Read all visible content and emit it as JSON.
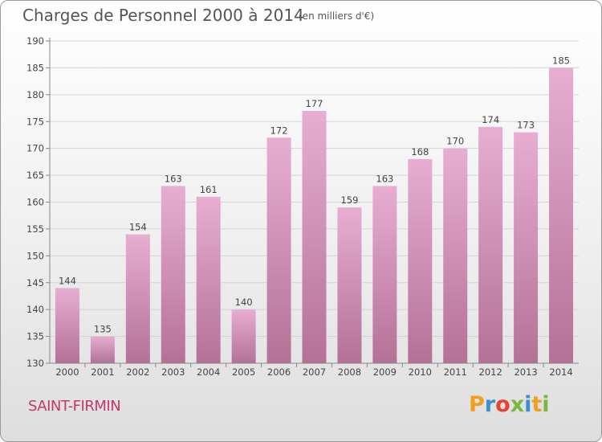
{
  "header": {
    "title": "Charges de Personnel 2000 à 2014",
    "subtitle": "(en milliers d'€)"
  },
  "footer": {
    "commune": "SAINT-FIRMIN",
    "logo": {
      "text": "Proxiti",
      "letters": [
        {
          "ch": "P",
          "color": "#f0a020"
        },
        {
          "ch": "r",
          "color": "#3a8fd0"
        },
        {
          "ch": "o",
          "color": "#e8432e"
        },
        {
          "ch": "x",
          "color": "#7ab83c"
        },
        {
          "ch": "i",
          "color": "#3a8fd0"
        },
        {
          "ch": "t",
          "color": "#f0a020"
        },
        {
          "ch": "i",
          "color": "#7ab83c"
        }
      ]
    }
  },
  "colors": {
    "bar_light": "#e7aed1",
    "bar_dark": "#b47196",
    "axis": "#888888",
    "grid": "#d4d4d4"
  },
  "chart_data": {
    "type": "bar",
    "categories": [
      "2000",
      "2001",
      "2002",
      "2003",
      "2004",
      "2005",
      "2006",
      "2007",
      "2008",
      "2009",
      "2010",
      "2011",
      "2012",
      "2013",
      "2014"
    ],
    "values": [
      144,
      135,
      154,
      163,
      161,
      140,
      172,
      177,
      159,
      163,
      168,
      170,
      174,
      173,
      185
    ],
    "ylim": [
      130,
      190
    ],
    "yticks": [
      130,
      135,
      140,
      145,
      150,
      155,
      160,
      165,
      170,
      175,
      180,
      185,
      190
    ],
    "grid": true,
    "data_labels": true,
    "title": "Charges de Personnel 2000 à 2014",
    "subtitle": "(en milliers d'€)"
  }
}
